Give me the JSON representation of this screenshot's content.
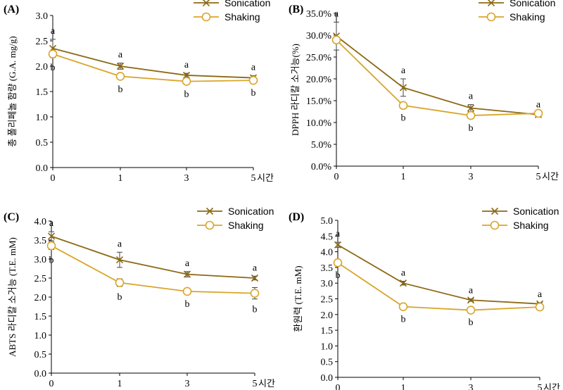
{
  "chart_data": [
    {
      "type": "line",
      "panel_label": "(A)",
      "categories": [
        "0",
        "1",
        "3",
        "5"
      ],
      "x_unit": "시간",
      "ylabel": "총 폴리페놀 함량 (G.A. mg/g)",
      "ylim": [
        0,
        3
      ],
      "ytick_step": 0.5,
      "ytick_decimals": 1,
      "ytick_suffix": "",
      "legend_position": "top-right",
      "series": [
        {
          "name": "Sonication",
          "values": [
            2.35,
            2.0,
            1.82,
            1.77
          ],
          "errors": [
            0.18,
            0.06,
            0.04,
            0.04
          ],
          "letters": [
            "a",
            "a",
            "a",
            "a"
          ]
        },
        {
          "name": "Shaking",
          "values": [
            2.24,
            1.8,
            1.7,
            1.72
          ],
          "errors": [
            0.06,
            0.05,
            0.05,
            0.04
          ],
          "letters": [
            "b",
            "b",
            "b",
            "b"
          ]
        }
      ]
    },
    {
      "type": "line",
      "panel_label": "(B)",
      "categories": [
        "0",
        "1",
        "3",
        "5"
      ],
      "x_unit": "시간",
      "ylabel": "DPPH 라디칼 소거능(%)",
      "ylim": [
        0,
        35
      ],
      "ytick_step": 5,
      "ytick_decimals": 1,
      "ytick_suffix": "%",
      "legend_position": "top-right",
      "series": [
        {
          "name": "Sonication",
          "values": [
            29.8,
            18.0,
            13.3,
            11.8
          ],
          "errors": [
            3.2,
            2.0,
            0.8,
            0.4
          ],
          "letters": [
            "a",
            "a",
            "a",
            "a"
          ]
        },
        {
          "name": "Shaking",
          "values": [
            28.9,
            13.9,
            11.6,
            12.1
          ],
          "errors": [
            0.7,
            0.4,
            0.5,
            0.6
          ],
          "letters": [
            null,
            "b",
            "b",
            null
          ]
        }
      ]
    },
    {
      "type": "line",
      "panel_label": "(C)",
      "categories": [
        "0",
        "1",
        "3",
        "5"
      ],
      "x_unit": "시간",
      "ylabel": "ABTS 라디칼 소거능 (T.E. mM)",
      "ylim": [
        0,
        4
      ],
      "ytick_step": 0.5,
      "ytick_decimals": 1,
      "ytick_suffix": "",
      "legend_position": "top-right",
      "series": [
        {
          "name": "Sonication",
          "values": [
            3.6,
            2.98,
            2.6,
            2.5
          ],
          "errors": [
            0.12,
            0.2,
            0.07,
            0.05
          ],
          "letters": [
            "a",
            "a",
            "a",
            "a"
          ]
        },
        {
          "name": "Shaking",
          "values": [
            3.35,
            2.38,
            2.15,
            2.1
          ],
          "errors": [
            0.1,
            0.1,
            0.06,
            0.15
          ],
          "letters": [
            "b",
            "b",
            "b",
            "b"
          ]
        }
      ]
    },
    {
      "type": "line",
      "panel_label": "(D)",
      "categories": [
        "0",
        "1",
        "3",
        "5"
      ],
      "x_unit": "시간",
      "ylabel": "환원력 (T.E. mM)",
      "ylim": [
        0,
        5
      ],
      "ytick_step": 0.5,
      "ytick_decimals": 1,
      "ytick_suffix": "",
      "legend_position": "top-right",
      "series": [
        {
          "name": "Sonication",
          "values": [
            4.22,
            3.0,
            2.46,
            2.34
          ],
          "errors": [
            0.08,
            0.06,
            0.04,
            0.04
          ],
          "letters": [
            "a",
            "a",
            "a",
            "a"
          ]
        },
        {
          "name": "Shaking",
          "values": [
            3.65,
            2.25,
            2.14,
            2.24
          ],
          "errors": [
            0.06,
            0.06,
            0.06,
            0.05
          ],
          "letters": [
            "b",
            "b",
            "b",
            null
          ]
        }
      ]
    }
  ],
  "colors": {
    "sonication": "#8b6914",
    "shaking": "#d9a52b",
    "axis": "#000000"
  }
}
